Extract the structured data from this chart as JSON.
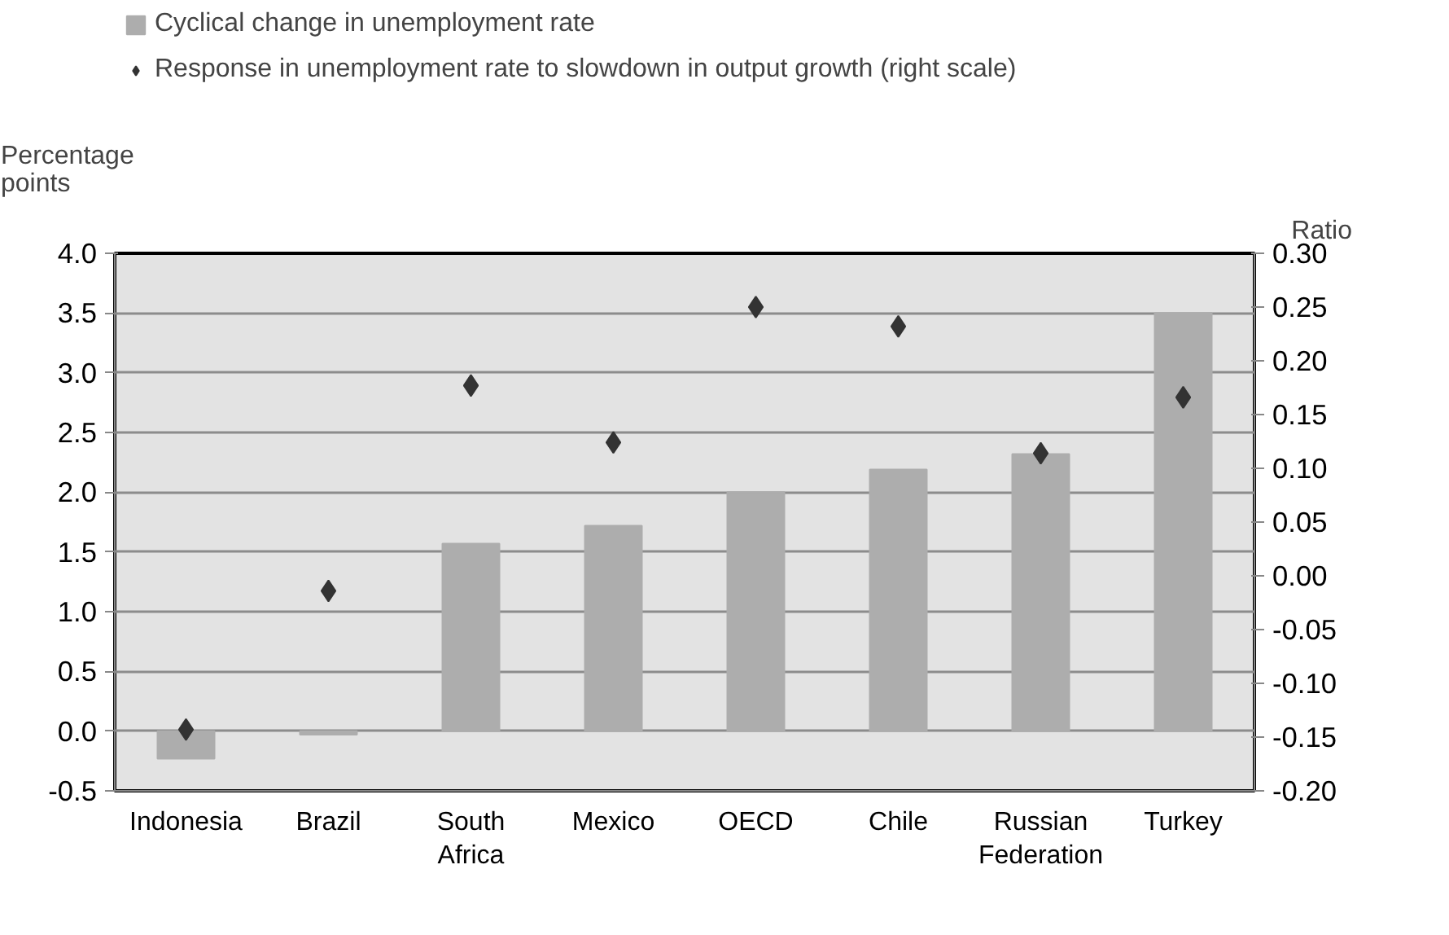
{
  "chart_data": {
    "type": "bar",
    "categories": [
      "Indonesia",
      "Brazil",
      "South Africa",
      "Mexico",
      "OECD",
      "Chile",
      "Russian Federation",
      "Turkey"
    ],
    "series": [
      {
        "name": "Cyclical change in unemployment rate",
        "color": "#adadad",
        "values": [
          -0.23,
          -0.03,
          1.57,
          1.72,
          2.0,
          2.19,
          2.32,
          3.5
        ]
      },
      {
        "name": "Response in unemployment rate to slowdown in output growth (right scale)",
        "type": "scatter",
        "axis": "y2",
        "marker": "diamond",
        "color": "#333333",
        "values": [
          -0.143,
          -0.014,
          0.177,
          0.124,
          0.25,
          0.232,
          0.114,
          0.166
        ]
      }
    ],
    "ylabel": "Percentage points",
    "y2label": "Ratio",
    "ylim": [
      -0.5,
      4.0
    ],
    "yticks": [
      {
        "value": -0.5,
        "label": "-0.5"
      },
      {
        "value": 0,
        "label": "0.0"
      },
      {
        "value": 0.5,
        "label": "0.5"
      },
      {
        "value": 1,
        "label": "1.0"
      },
      {
        "value": 1.5,
        "label": "1.5"
      },
      {
        "value": 2,
        "label": "2.0"
      },
      {
        "value": 2.5,
        "label": "2.5"
      },
      {
        "value": 3,
        "label": "3.0"
      },
      {
        "value": 3.5,
        "label": "3.5"
      },
      {
        "value": 4,
        "label": "4.0"
      }
    ],
    "y2lim": [
      -0.2,
      0.3
    ],
    "y2ticks": [
      {
        "value": -0.2,
        "label": "-0.20"
      },
      {
        "value": -0.15,
        "label": "-0.15"
      },
      {
        "value": -0.1,
        "label": "-0.10"
      },
      {
        "value": -0.05,
        "label": "-0.05"
      },
      {
        "value": 0,
        "label": "0.00"
      },
      {
        "value": 0.05,
        "label": "0.05"
      },
      {
        "value": 0.1,
        "label": "0.10"
      },
      {
        "value": 0.15,
        "label": "0.15"
      },
      {
        "value": 0.2,
        "label": "0.20"
      },
      {
        "value": 0.25,
        "label": "0.25"
      },
      {
        "value": 0.3,
        "label": "0.30"
      }
    ],
    "grid": "y",
    "legend": "top"
  }
}
